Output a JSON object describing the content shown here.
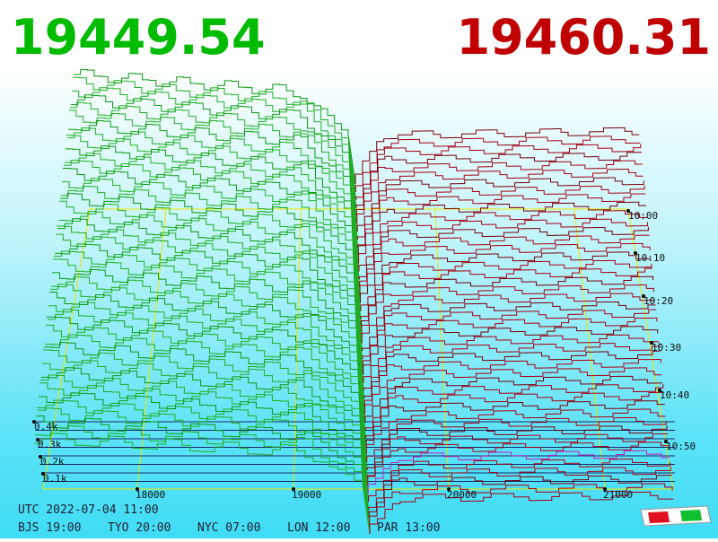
{
  "header": {
    "bid": "19449.54",
    "ask": "19460.31"
  },
  "axes": {
    "price_labels": [
      "18000",
      "19000",
      "20000",
      "21000"
    ],
    "time_labels": [
      "10:00",
      "10:10",
      "10:20",
      "10:30",
      "10:40",
      "10:50"
    ],
    "volume_labels": [
      "0.4k",
      "0.3k",
      "0.2k",
      "0.1k"
    ]
  },
  "footer": {
    "utc": "UTC 2022-07-04 11:00",
    "zones": [
      "BJS 19:00",
      "TYO 20:00",
      "NYC 07:00",
      "LON 12:00",
      "PAR 13:00"
    ]
  }
}
